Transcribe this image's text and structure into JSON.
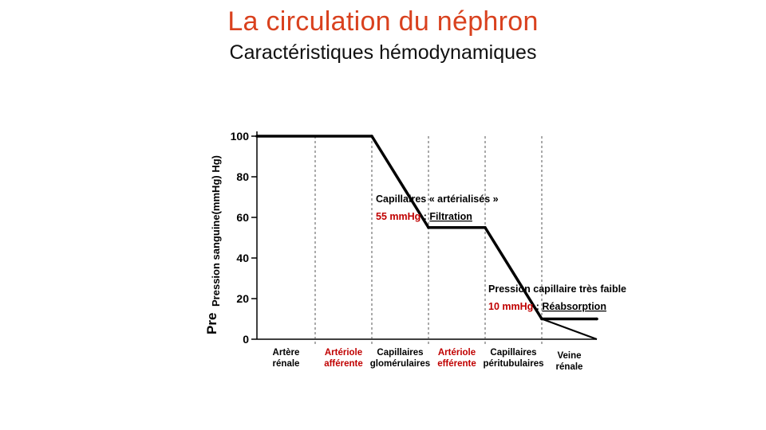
{
  "slide": {
    "title": "La circulation du néphron",
    "subtitle": "Caractéristiques hémodynamiques",
    "title_color": "#d9411e"
  },
  "chart_data": {
    "type": "line",
    "ylabel": "Pression sanguine(mmHg) Hg)",
    "ylabel_fragment": "Pre",
    "ylim": [
      0,
      100
    ],
    "yticks": [
      "0",
      "20",
      "40",
      "60",
      "80",
      "100"
    ],
    "ytick_values": [
      0,
      20,
      40,
      60,
      80,
      100
    ],
    "grid": false,
    "segments": [
      {
        "line1": "Artère",
        "line2": "rénale",
        "color": "#000000"
      },
      {
        "line1": "Artériole",
        "line2": "afférente",
        "color": "#c00000"
      },
      {
        "line1": "Capillaires",
        "line2": "glomérulaires",
        "color": "#000000"
      },
      {
        "line1": "Artériole",
        "line2": "efférente",
        "color": "#c00000"
      },
      {
        "line1": "Capillaires",
        "line2": "péritubulaires",
        "color": "#000000"
      },
      {
        "line1": "Veine",
        "line2": "rénale",
        "color": "#000000"
      }
    ],
    "series": [
      {
        "points": [
          [
            0,
            100
          ],
          [
            1,
            100
          ],
          [
            2,
            55
          ],
          [
            3,
            55
          ],
          [
            4,
            10
          ],
          [
            5,
            10
          ]
        ],
        "color": "#000000"
      }
    ],
    "annotations": [
      {
        "heading": "Capillaires « artérialisés »",
        "value": "55 mmHg",
        "separator": " : ",
        "label": "Filtration",
        "value_color": "#c00000"
      },
      {
        "heading": "Pression capillaire très faible",
        "value": "10 mmHg",
        "separator": " : ",
        "label": "Réabsorption",
        "value_color": "#c00000"
      }
    ]
  }
}
